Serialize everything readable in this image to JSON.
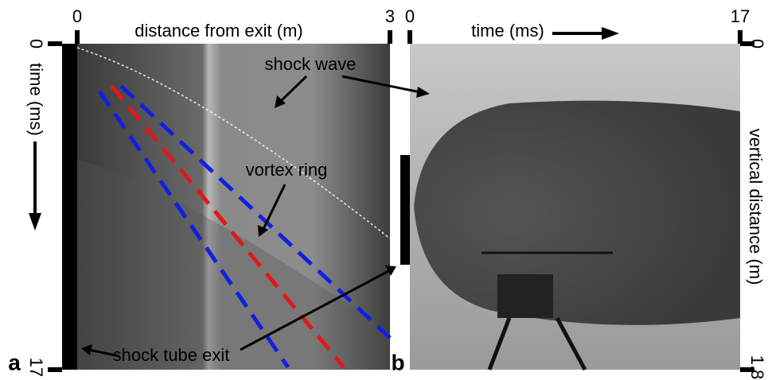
{
  "panel_a": {
    "label": "a",
    "x_axis": {
      "title": "distance from exit (m)",
      "ticks": [
        0,
        3
      ]
    },
    "y_axis": {
      "title": "time (ms)",
      "ticks": [
        0,
        17
      ]
    },
    "annotations": {
      "shock_wave": "shock wave",
      "vortex_ring": "vortex ring",
      "exit": "shock tube exit"
    }
  },
  "panel_b": {
    "label": "b",
    "x_axis": {
      "title": "time (ms)",
      "ticks": [
        0,
        17
      ]
    },
    "y_axis": {
      "title": "vertical distance (m)",
      "ticks": [
        0,
        1.8
      ]
    }
  }
}
